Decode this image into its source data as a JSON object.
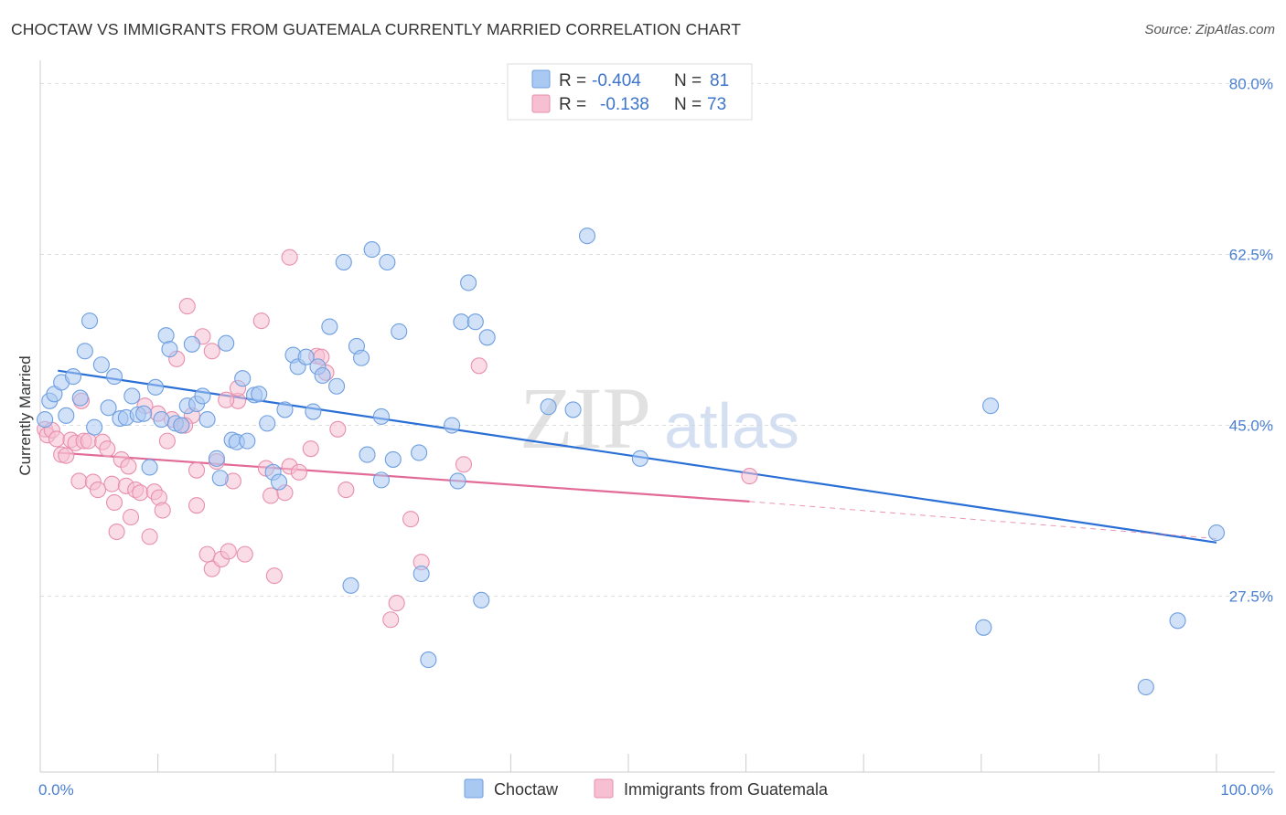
{
  "title": "CHOCTAW VS IMMIGRANTS FROM GUATEMALA CURRENTLY MARRIED CORRELATION CHART",
  "source": "Source: ZipAtlas.com",
  "watermark": {
    "zip": "ZIP",
    "atlas": "atlas"
  },
  "colors": {
    "blue_fill": "#a9c8f2",
    "blue_stroke": "#6f9fe0",
    "blue_line": "#2a6fd6",
    "pink_fill": "#f6bfd2",
    "pink_stroke": "#e88fae",
    "pink_line": "#e26a96",
    "grid": "#dddddd",
    "tick_text": "#4a7fd0"
  },
  "legend": {
    "rows": [
      {
        "r_label": "R =",
        "r_value": "-0.404",
        "n_label": "N =",
        "n_value": "81"
      },
      {
        "r_label": "R =",
        "r_value": "-0.138",
        "n_label": "N =",
        "n_value": "73"
      }
    ]
  },
  "chart_data": {
    "type": "scatter",
    "title": "CHOCTAW VS IMMIGRANTS FROM GUATEMALA CURRENTLY MARRIED CORRELATION CHART",
    "xlabel": "",
    "ylabel": "Currently Married",
    "xlim": [
      0,
      100
    ],
    "ylim": [
      9.5,
      82
    ],
    "x_tick_labels": [
      "0.0%",
      "100.0%"
    ],
    "y_ticks": [
      27.5,
      45.0,
      62.5,
      80.0
    ],
    "y_tick_labels": [
      "27.5%",
      "45.0%",
      "62.5%",
      "80.0%"
    ],
    "grid": true,
    "legend_position": "top-center",
    "series": [
      {
        "name": "Choctaw",
        "r": -0.404,
        "n": 81,
        "trend": [
          [
            1.5,
            50.6
          ],
          [
            100,
            33.0
          ]
        ],
        "points": [
          [
            0.4,
            45.6
          ],
          [
            0.8,
            47.5
          ],
          [
            1.2,
            48.2
          ],
          [
            1.8,
            49.4
          ],
          [
            2.2,
            46.0
          ],
          [
            2.8,
            50.0
          ],
          [
            3.4,
            47.8
          ],
          [
            3.8,
            52.6
          ],
          [
            4.2,
            55.7
          ],
          [
            4.6,
            44.8
          ],
          [
            5.2,
            51.2
          ],
          [
            5.8,
            46.8
          ],
          [
            6.3,
            50.0
          ],
          [
            6.8,
            45.7
          ],
          [
            7.3,
            45.8
          ],
          [
            7.8,
            48.0
          ],
          [
            8.3,
            46.1
          ],
          [
            8.8,
            46.2
          ],
          [
            9.3,
            40.7
          ],
          [
            9.8,
            48.9
          ],
          [
            10.3,
            45.6
          ],
          [
            10.7,
            54.2
          ],
          [
            11.0,
            52.8
          ],
          [
            11.5,
            45.2
          ],
          [
            12.0,
            45.0
          ],
          [
            12.5,
            47.0
          ],
          [
            12.9,
            53.3
          ],
          [
            13.3,
            47.2
          ],
          [
            13.8,
            48.0
          ],
          [
            14.2,
            45.6
          ],
          [
            15.0,
            41.6
          ],
          [
            15.3,
            39.6
          ],
          [
            15.8,
            53.4
          ],
          [
            16.3,
            43.5
          ],
          [
            16.7,
            43.3
          ],
          [
            17.2,
            49.8
          ],
          [
            17.6,
            43.4
          ],
          [
            18.2,
            48.1
          ],
          [
            18.6,
            48.2
          ],
          [
            19.3,
            45.2
          ],
          [
            19.8,
            40.2
          ],
          [
            20.3,
            39.2
          ],
          [
            20.8,
            46.6
          ],
          [
            21.5,
            52.2
          ],
          [
            21.9,
            51.0
          ],
          [
            22.6,
            52.0
          ],
          [
            23.2,
            46.4
          ],
          [
            23.6,
            51.0
          ],
          [
            24.0,
            50.1
          ],
          [
            24.6,
            55.1
          ],
          [
            25.2,
            49.0
          ],
          [
            25.8,
            61.7
          ],
          [
            26.4,
            28.6
          ],
          [
            26.9,
            53.1
          ],
          [
            27.3,
            51.9
          ],
          [
            27.8,
            42.0
          ],
          [
            28.2,
            63.0
          ],
          [
            29.0,
            45.9
          ],
          [
            29.0,
            39.4
          ],
          [
            29.5,
            61.7
          ],
          [
            30.0,
            41.5
          ],
          [
            30.5,
            54.6
          ],
          [
            32.2,
            42.2
          ],
          [
            32.4,
            29.8
          ],
          [
            33.0,
            21.0
          ],
          [
            35.0,
            45.0
          ],
          [
            35.5,
            39.3
          ],
          [
            35.8,
            55.6
          ],
          [
            36.4,
            59.6
          ],
          [
            37.0,
            55.6
          ],
          [
            37.5,
            27.1
          ],
          [
            38.0,
            54.0
          ],
          [
            43.2,
            46.9
          ],
          [
            45.3,
            46.6
          ],
          [
            46.5,
            64.4
          ],
          [
            51.0,
            41.6
          ],
          [
            80.2,
            24.3
          ],
          [
            80.8,
            47.0
          ],
          [
            94.0,
            18.2
          ],
          [
            96.7,
            25.0
          ],
          [
            100.0,
            34.0
          ]
        ]
      },
      {
        "name": "Immigrants from Guatemala",
        "r": -0.138,
        "n": 73,
        "trend": [
          [
            1.5,
            42.2
          ],
          [
            60.3,
            37.2
          ]
        ],
        "trend_dashed": [
          [
            60.3,
            37.2
          ],
          [
            100,
            33.4
          ]
        ],
        "points": [
          [
            0.4,
            44.6
          ],
          [
            0.6,
            44.0
          ],
          [
            1.0,
            44.5
          ],
          [
            1.4,
            43.6
          ],
          [
            1.8,
            42.0
          ],
          [
            2.2,
            41.9
          ],
          [
            2.6,
            43.5
          ],
          [
            3.0,
            43.2
          ],
          [
            3.3,
            39.3
          ],
          [
            3.7,
            43.4
          ],
          [
            4.1,
            43.4
          ],
          [
            4.5,
            39.2
          ],
          [
            4.9,
            38.4
          ],
          [
            5.3,
            43.3
          ],
          [
            5.7,
            42.6
          ],
          [
            6.1,
            39.0
          ],
          [
            6.3,
            37.1
          ],
          [
            6.5,
            34.1
          ],
          [
            6.9,
            41.5
          ],
          [
            7.3,
            38.8
          ],
          [
            7.7,
            35.6
          ],
          [
            8.1,
            38.4
          ],
          [
            8.5,
            38.1
          ],
          [
            8.9,
            47.0
          ],
          [
            9.3,
            33.6
          ],
          [
            9.7,
            38.2
          ],
          [
            10.1,
            37.6
          ],
          [
            10.4,
            36.3
          ],
          [
            10.8,
            43.4
          ],
          [
            11.2,
            45.6
          ],
          [
            11.6,
            51.8
          ],
          [
            12.0,
            45.0
          ],
          [
            12.5,
            57.2
          ],
          [
            12.9,
            46.0
          ],
          [
            13.3,
            40.4
          ],
          [
            13.3,
            36.8
          ],
          [
            13.8,
            54.1
          ],
          [
            14.2,
            31.8
          ],
          [
            14.6,
            30.3
          ],
          [
            14.6,
            52.6
          ],
          [
            15.0,
            41.3
          ],
          [
            15.4,
            31.3
          ],
          [
            16.0,
            32.1
          ],
          [
            16.4,
            39.3
          ],
          [
            16.8,
            47.5
          ],
          [
            16.8,
            48.8
          ],
          [
            17.4,
            31.8
          ],
          [
            18.8,
            55.7
          ],
          [
            19.2,
            40.6
          ],
          [
            19.6,
            37.8
          ],
          [
            19.9,
            29.6
          ],
          [
            20.8,
            38.1
          ],
          [
            21.2,
            62.2
          ],
          [
            21.2,
            40.8
          ],
          [
            22.0,
            40.2
          ],
          [
            23.0,
            42.6
          ],
          [
            23.5,
            52.1
          ],
          [
            23.9,
            52.0
          ],
          [
            24.3,
            50.4
          ],
          [
            25.3,
            44.6
          ],
          [
            26.0,
            38.4
          ],
          [
            30.3,
            26.8
          ],
          [
            29.8,
            25.1
          ],
          [
            31.5,
            35.4
          ],
          [
            32.4,
            31.0
          ],
          [
            36.0,
            41.0
          ],
          [
            37.3,
            51.1
          ],
          [
            60.3,
            39.8
          ],
          [
            12.3,
            45.0
          ],
          [
            7.5,
            40.8
          ],
          [
            3.5,
            47.5
          ],
          [
            15.8,
            47.6
          ],
          [
            10.0,
            46.2
          ]
        ]
      }
    ]
  }
}
